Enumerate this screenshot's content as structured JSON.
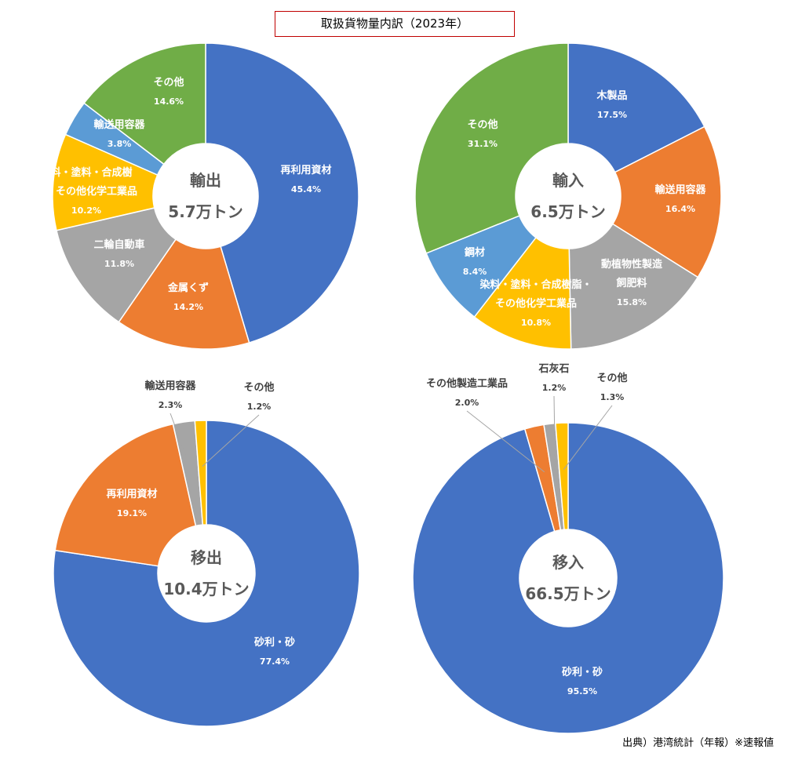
{
  "title": "取扱貨物量内訳（2023年）",
  "source": "出典）港湾統計（年報）※速報値",
  "chart_data": [
    {
      "type": "pie",
      "donut": true,
      "center_text": [
        "輸出",
        "5.7万トン"
      ],
      "categories": [
        "再利用資材",
        "金属くず",
        "二輪自動車",
        "染料・塗料・合成樹\n脂・その他化学工業品",
        "輸送用容器",
        "その他"
      ],
      "values": [
        45.4,
        14.2,
        11.8,
        10.2,
        3.8,
        14.6
      ],
      "value_labels": [
        "45.4%",
        "14.2%",
        "11.8%",
        "10.2%",
        "3.8%",
        "14.6%"
      ],
      "colors": [
        "#4472c4",
        "#ed7d31",
        "#a5a5a5",
        "#ffc000",
        "#5b9bd5",
        "#70ad47"
      ]
    },
    {
      "type": "pie",
      "donut": true,
      "center_text": [
        "輸入",
        "6.5万トン"
      ],
      "categories": [
        "木製品",
        "輸送用容器",
        "動植物性製造\n飼肥料",
        "染料・塗料・合成樹脂・\nその他化学工業品",
        "鋼材",
        "その他"
      ],
      "values": [
        17.5,
        16.4,
        15.8,
        10.8,
        8.4,
        31.1
      ],
      "value_labels": [
        "17.5%",
        "16.4%",
        "15.8%",
        "10.8%",
        "8.4%",
        "31.1%"
      ],
      "colors": [
        "#4472c4",
        "#ed7d31",
        "#a5a5a5",
        "#ffc000",
        "#5b9bd5",
        "#70ad47"
      ]
    },
    {
      "type": "pie",
      "donut": true,
      "center_text": [
        "移出",
        "10.4万トン"
      ],
      "categories": [
        "砂利・砂",
        "再利用資材",
        "輸送用容器",
        "その他"
      ],
      "values": [
        77.4,
        19.1,
        2.3,
        1.2
      ],
      "value_labels": [
        "77.4%",
        "19.1%",
        "2.3%",
        "1.2%"
      ],
      "colors": [
        "#4472c4",
        "#ed7d31",
        "#a5a5a5",
        "#ffc000"
      ]
    },
    {
      "type": "pie",
      "donut": true,
      "center_text": [
        "移入",
        "66.5万トン"
      ],
      "categories": [
        "砂利・砂",
        "その他製造工業品",
        "石灰石",
        "その他"
      ],
      "values": [
        95.5,
        2.0,
        1.2,
        1.3
      ],
      "value_labels": [
        "95.5%",
        "2.0%",
        "1.2%",
        "1.3%"
      ],
      "colors": [
        "#4472c4",
        "#ed7d31",
        "#a5a5a5",
        "#ffc000"
      ]
    }
  ]
}
